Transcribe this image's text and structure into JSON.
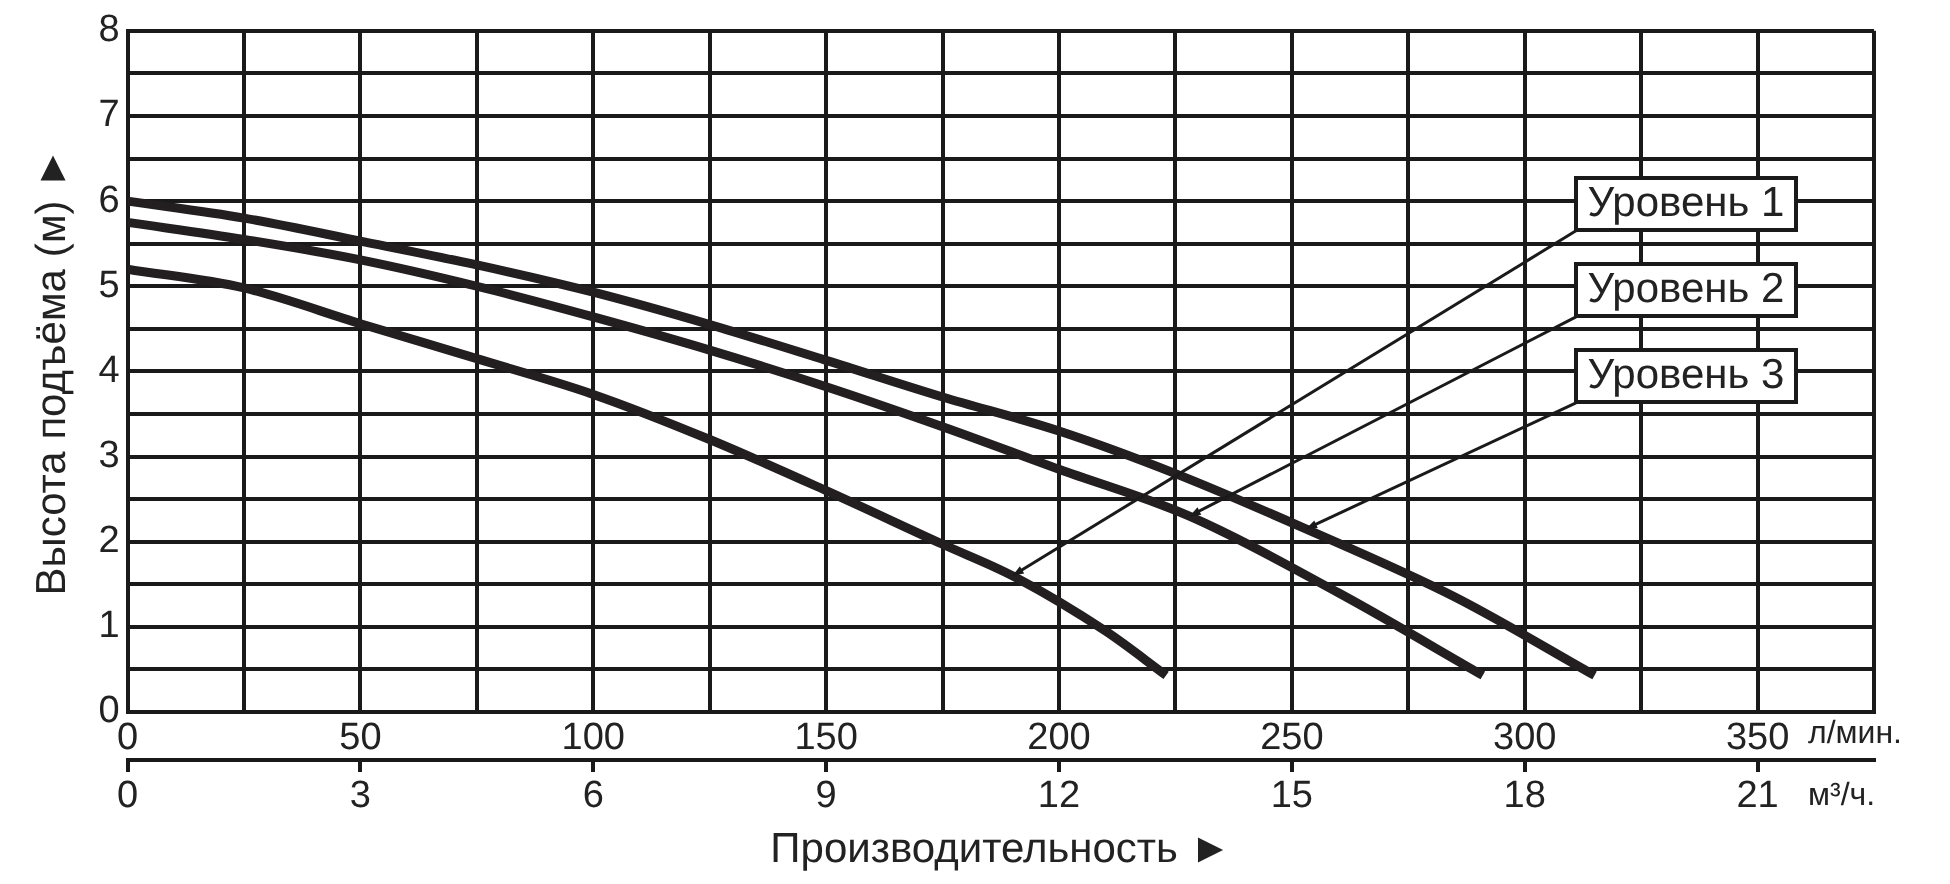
{
  "chart_data": {
    "type": "line",
    "xlabel": "Производительность ►",
    "ylabel": "Высота подъёма (м) ►",
    "annotations": [
      "л/мин.",
      "м³/ч.",
      {
        "text": "Уровень 1",
        "x": 190,
        "y": 1.6
      },
      {
        "text": "Уровень 2",
        "x": 228,
        "y": 2.3
      },
      {
        "text": "Уровень 3",
        "x": 253,
        "y": 2.15
      }
    ],
    "xlim": [
      0,
      375
    ],
    "xticks": [
      0,
      {
        "value": 25,
        "label": null
      },
      50,
      {
        "value": 75,
        "label": null
      },
      100,
      {
        "value": 125,
        "label": null
      },
      150,
      {
        "value": 175,
        "label": null
      },
      200,
      {
        "value": 225,
        "label": null
      },
      250,
      {
        "value": 275,
        "label": null
      },
      300,
      {
        "value": 325,
        "label": null
      },
      350,
      {
        "value": 375,
        "label": null
      }
    ],
    "x2lim": [
      0,
      22.5
    ],
    "x2ticks": [
      0,
      3,
      6,
      9,
      12,
      15,
      18,
      21
    ],
    "ylim": [
      0,
      8
    ],
    "yticks": [
      0,
      {
        "value": 0.5,
        "label": null
      },
      1,
      {
        "value": 1.5,
        "label": null
      },
      2,
      {
        "value": 2.5,
        "label": null
      },
      3,
      {
        "value": 3.5,
        "label": null
      },
      4,
      {
        "value": 4.5,
        "label": null
      },
      5,
      {
        "value": 5.5,
        "label": null
      },
      6,
      {
        "value": 6.5,
        "label": null
      },
      7,
      {
        "value": 7.5,
        "label": null
      },
      8
    ],
    "grid": true,
    "legend": false,
    "series": [
      {
        "color": "#231f20",
        "x": [
          0,
          25,
          50,
          75,
          100,
          125,
          150,
          175,
          190,
          210,
          223
        ],
        "values": [
          5.2,
          4.98,
          4.56,
          4.15,
          3.73,
          3.2,
          2.6,
          1.97,
          1.6,
          0.95,
          0.43
        ]
      },
      {
        "color": "#231f20",
        "x": [
          0,
          25,
          50,
          75,
          100,
          125,
          150,
          175,
          200,
          228,
          260,
          291
        ],
        "values": [
          5.75,
          5.55,
          5.31,
          5.0,
          4.64,
          4.25,
          3.82,
          3.35,
          2.85,
          2.3,
          1.4,
          0.43
        ]
      },
      {
        "color": "#231f20",
        "x": [
          0,
          25,
          50,
          75,
          100,
          125,
          150,
          175,
          200,
          225,
          253,
          285,
          315
        ],
        "values": [
          6.0,
          5.8,
          5.53,
          5.25,
          4.93,
          4.55,
          4.13,
          3.7,
          3.3,
          2.8,
          2.15,
          1.35,
          0.43
        ]
      }
    ]
  }
}
